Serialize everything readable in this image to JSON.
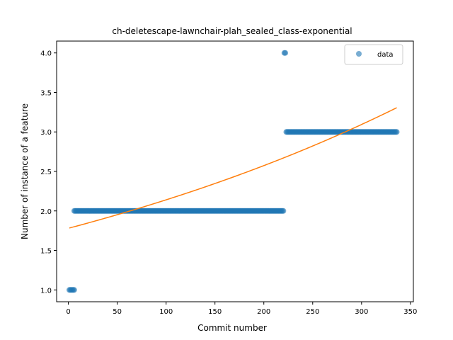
{
  "chart_data": {
    "type": "scatter",
    "title": "ch-deletescape-lawnchair-plah_sealed_class-exponential",
    "xlabel": "Commit number",
    "ylabel": "Number of instance of a feature",
    "xlim": [
      -12,
      353
    ],
    "ylim": [
      0.85,
      4.15
    ],
    "xticks": [
      0,
      50,
      100,
      150,
      200,
      250,
      300,
      350
    ],
    "yticks": [
      1.0,
      1.5,
      2.0,
      2.5,
      3.0,
      3.5,
      4.0
    ],
    "legend": {
      "position": "top-right",
      "entries": [
        "data"
      ]
    },
    "grid": false,
    "colors": {
      "data": "#1f77b4",
      "fit": "#ff7f0e"
    },
    "series": [
      {
        "name": "data",
        "kind": "scatter",
        "segments": [
          {
            "x_start": 1,
            "x_end": 6,
            "y": 1
          },
          {
            "x_start": 6,
            "x_end": 220,
            "y": 2
          },
          {
            "x_start": 221,
            "x_end": 222,
            "y": 4
          },
          {
            "x_start": 223,
            "x_end": 336,
            "y": 3
          }
        ]
      },
      {
        "kind": "line",
        "function": "exponential",
        "a": 1.78,
        "b": 0.001843,
        "x_range": [
          1,
          336
        ]
      }
    ]
  }
}
